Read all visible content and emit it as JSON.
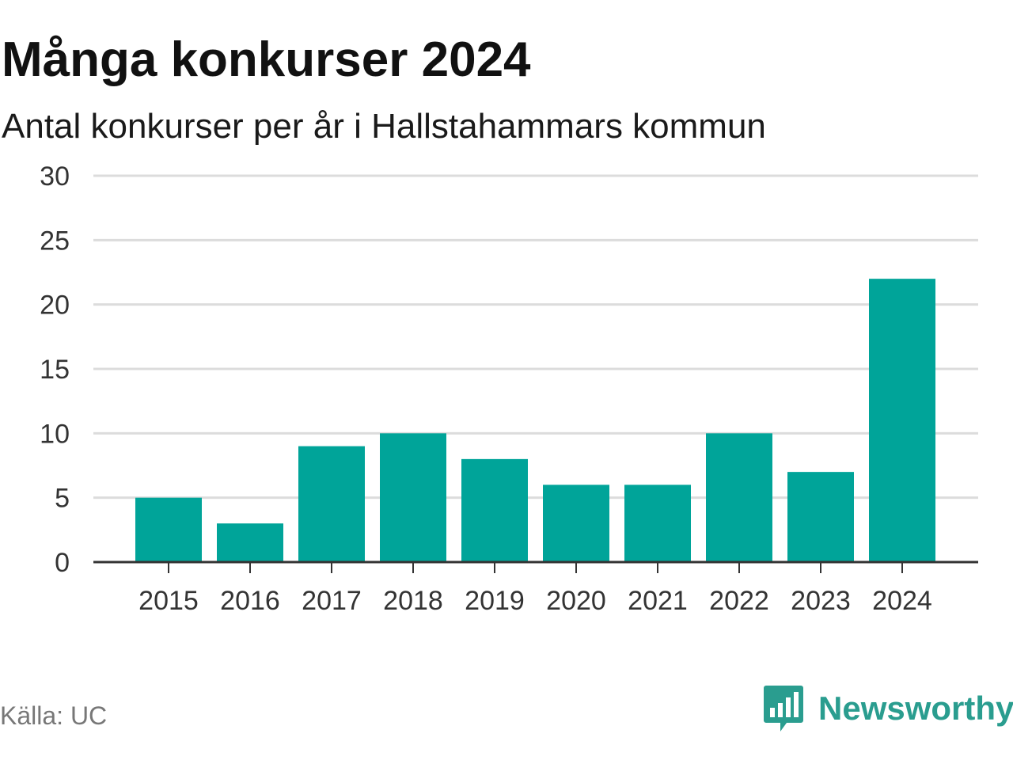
{
  "header": {
    "title": "Många konkurser 2024",
    "subtitle": "Antal konkurser per år i Hallstahammars kommun"
  },
  "footer": {
    "source": "Källa: UC",
    "brand": "Newsworthy",
    "brand_icon": "bar-chart-speech-bubble-icon"
  },
  "colors": {
    "bar": "#00a499",
    "grid": "#dcdcdc",
    "axis": "#333333",
    "brand": "#2a9d8f"
  },
  "chart_data": {
    "type": "bar",
    "categories": [
      "2015",
      "2016",
      "2017",
      "2018",
      "2019",
      "2020",
      "2021",
      "2022",
      "2023",
      "2024"
    ],
    "values": [
      5,
      3,
      9,
      10,
      8,
      6,
      6,
      10,
      7,
      22
    ],
    "ylim": [
      0,
      30
    ],
    "yticks": [
      0,
      5,
      10,
      15,
      20,
      25,
      30
    ],
    "xlabel": "",
    "ylabel": "",
    "grid": true,
    "legend": "none"
  }
}
